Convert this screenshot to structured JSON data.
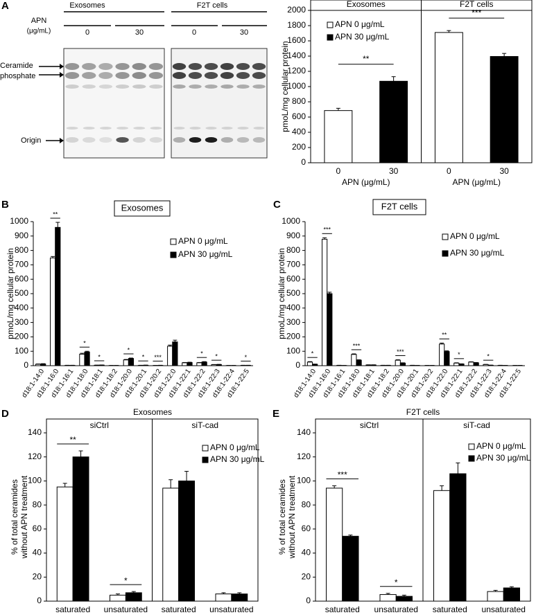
{
  "blot": {
    "label": "A",
    "groups": [
      "Exosomes",
      "F2T cells"
    ],
    "factor": "APN",
    "unit": "(μg/mL)",
    "doses": [
      "0",
      "30"
    ],
    "bands": [
      "Ceramide",
      "phosphate"
    ],
    "origin": "Origin"
  },
  "chart_data": [
    {
      "type": "bar",
      "groups": [
        "Exosomes",
        "F2T cells"
      ],
      "categories": [
        "0",
        "30",
        "0",
        "30"
      ],
      "series": [
        {
          "name": "APN 0 μg/mL",
          "color": "#ffffff",
          "values": [
            685,
            null,
            1710,
            null
          ],
          "errors": [
            30,
            null,
            25,
            null
          ]
        },
        {
          "name": "APN 30 μg/mL",
          "color": "#000000",
          "values": [
            null,
            1070,
            null,
            1395
          ],
          "errors": [
            null,
            60,
            null,
            40
          ]
        }
      ],
      "significance": [
        "**",
        "***"
      ],
      "ylabel": "pmoL/mg cellular protein",
      "xlabel": "APN (μg/mL)",
      "ylim": [
        0,
        2000
      ],
      "yticks": [
        0,
        200,
        400,
        600,
        800,
        1000,
        1200,
        1400,
        1600,
        1800,
        2000
      ]
    },
    {
      "type": "bar",
      "label": "B",
      "title": "Exosomes",
      "categories": [
        "d18:1-14:0",
        "d18:1-16:0",
        "d18:1-16:1",
        "d18:1-18:0",
        "d18:1-18:1",
        "d18:1-18:2",
        "d18:1-20:0",
        "d18:1-20:1",
        "d18:1-20:2",
        "d18:1-22:0",
        "d18:1-22:1",
        "d18:1-22:2",
        "d18:1-22:3",
        "d18:1-22:4",
        "d18:1-22:5"
      ],
      "series": [
        {
          "name": "APN 0  μg/mL",
          "color": "#ffffff",
          "values": [
            10,
            748,
            2,
            80,
            3,
            1,
            40,
            2,
            1,
            135,
            20,
            20,
            7,
            1,
            2
          ],
          "errors": [
            2,
            10,
            1,
            6,
            1,
            1,
            3,
            1,
            1,
            8,
            2,
            2,
            1,
            1,
            1
          ]
        },
        {
          "name": "APN 30  μg/mL",
          "color": "#000000",
          "values": [
            12,
            960,
            2,
            95,
            4,
            1,
            50,
            3,
            2,
            165,
            22,
            25,
            8,
            1,
            2
          ],
          "errors": [
            2,
            35,
            1,
            5,
            1,
            1,
            3,
            1,
            1,
            12,
            2,
            3,
            1,
            1,
            1
          ]
        }
      ],
      "significance": [
        null,
        "**",
        null,
        "*",
        "*",
        null,
        "*",
        "*",
        "***",
        null,
        null,
        "*",
        "*",
        null,
        "*"
      ],
      "ylabel": "pmoL/mg cellular protein",
      "ylim": [
        0,
        1000
      ],
      "yticks": [
        0,
        100,
        200,
        300,
        400,
        500,
        600,
        700,
        800,
        900,
        1000
      ]
    },
    {
      "type": "bar",
      "label": "C",
      "title": "F2T cells",
      "categories": [
        "d18:1-14:0",
        "d18:1-16:0",
        "d18:1-16:1",
        "d18:1-18:0",
        "d18:1-18:1",
        "d18:1-18:2",
        "d18:1-20:0",
        "d18:1-20:1",
        "d18:1-20:2",
        "d18:1-22:0",
        "d18:1-22:1",
        "d18:1-22:2",
        "d18:1-22:3",
        "d18:1-22:4",
        "d18:1-22:5"
      ],
      "series": [
        {
          "name": "APN 0  μg/mL",
          "color": "#ffffff",
          "values": [
            25,
            878,
            2,
            78,
            5,
            2,
            38,
            2,
            1,
            150,
            18,
            25,
            8,
            2,
            1
          ],
          "errors": [
            3,
            10,
            1,
            4,
            1,
            1,
            3,
            1,
            1,
            7,
            2,
            2,
            1,
            1,
            1
          ]
        },
        {
          "name": "APN 30  μg/mL",
          "color": "#000000",
          "values": [
            10,
            500,
            1,
            38,
            5,
            2,
            18,
            1,
            1,
            98,
            12,
            20,
            3,
            1,
            1
          ],
          "errors": [
            1,
            10,
            1,
            3,
            1,
            1,
            2,
            1,
            1,
            5,
            1,
            2,
            1,
            1,
            1
          ]
        }
      ],
      "significance": [
        "*",
        "***",
        null,
        "***",
        null,
        null,
        "***",
        null,
        null,
        "**",
        "*",
        null,
        "*",
        null,
        null
      ],
      "ylabel": "pmoL/mg cellular protein",
      "ylim": [
        0,
        1000
      ],
      "yticks": [
        0,
        100,
        200,
        300,
        400,
        500,
        600,
        700,
        800,
        900,
        1000
      ]
    },
    {
      "type": "bar",
      "label": "D",
      "title": "Exosomes",
      "groups": [
        "siCtrl",
        "siT-cad"
      ],
      "categories": [
        "saturated",
        "unsaturated",
        "saturated",
        "unsaturated"
      ],
      "series": [
        {
          "name": "APN 0  μg/mL",
          "color": "#ffffff",
          "values": [
            95,
            5,
            94,
            6
          ],
          "errors": [
            3,
            1,
            7,
            1
          ]
        },
        {
          "name": "APN 30  μg/mL",
          "color": "#000000",
          "values": [
            120,
            7,
            100,
            6
          ],
          "errors": [
            5,
            1,
            8,
            1
          ]
        }
      ],
      "significance": [
        "**",
        "*",
        null,
        null
      ],
      "ylabel": [
        "% of total ceramides",
        "without APN treatment"
      ],
      "ylim": [
        0,
        140
      ],
      "yticks": [
        0,
        20,
        40,
        60,
        80,
        100,
        120,
        140
      ]
    },
    {
      "type": "bar",
      "label": "E",
      "title": "F2T cells",
      "groups": [
        "siCtrl",
        "siT-cad"
      ],
      "categories": [
        "saturated",
        "unsaturated",
        "saturated",
        "unsaturated"
      ],
      "series": [
        {
          "name": "APN 0  μg/mL",
          "color": "#ffffff",
          "values": [
            94,
            5.5,
            92,
            8
          ],
          "errors": [
            2,
            1,
            4,
            1
          ]
        },
        {
          "name": "APN 30  μg/mL",
          "color": "#000000",
          "values": [
            54,
            4,
            106,
            11
          ],
          "errors": [
            1,
            1,
            9,
            1
          ]
        }
      ],
      "significance": [
        "***",
        "*",
        null,
        null
      ],
      "ylabel": [
        "% of total ceramides",
        "without APN treatment"
      ],
      "ylim": [
        0,
        140
      ],
      "yticks": [
        0,
        20,
        40,
        60,
        80,
        100,
        120,
        140
      ]
    }
  ]
}
